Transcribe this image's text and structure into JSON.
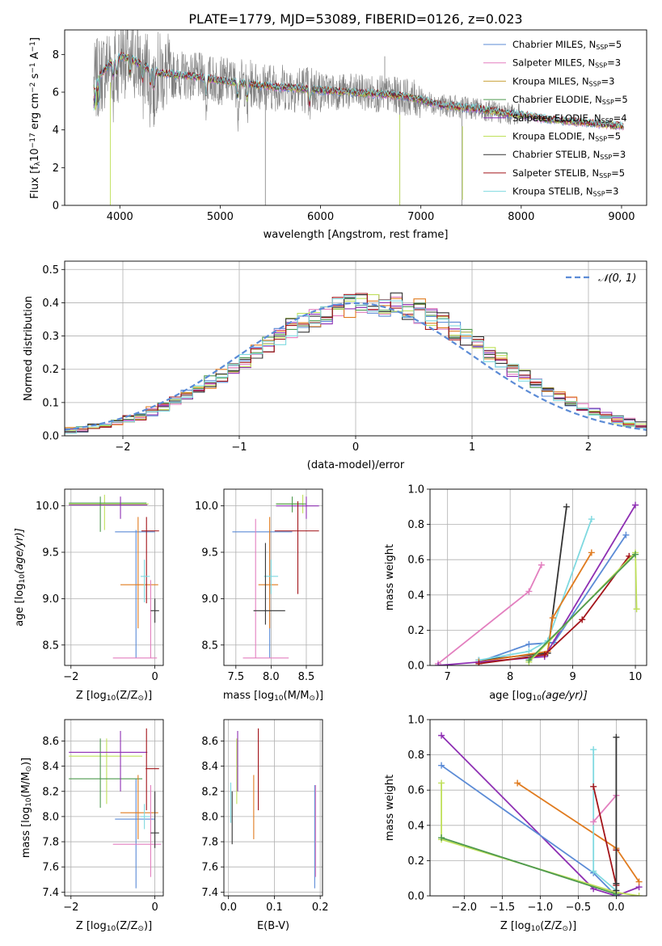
{
  "figure_title": "PLATE=1779, MJD=53089, FIBERID=0126, z=0.023",
  "colors": {
    "chabrier_miles": "#5b8bd6",
    "salpeter_miles": "#e37fbf",
    "kroupa_miles": "#c9a23a",
    "chabrier_elodie": "#4f9a4f",
    "salpeter_elodie": "#8e2fb3",
    "kroupa_elodie": "#bfe05a",
    "chabrier_stelib": "#333333",
    "salpeter_stelib": "#a3141a",
    "kroupa_stelib": "#7fd9e0",
    "orange": "#e07b1f",
    "data_gray": "#7f7f7f",
    "normal_curve": "#5b8bd6"
  },
  "chart_data": [
    {
      "type": "line",
      "id": "spectrum",
      "title": "",
      "xlabel": "wavelength [Angstrom, rest frame]",
      "ylabel_parts": [
        "Flux [f",
        "λ",
        "10",
        "−17",
        " erg cm",
        "−2",
        " s",
        "−1",
        " A",
        "−1",
        "]"
      ],
      "xlim": [
        3450,
        9250
      ],
      "ylim": [
        0,
        9.3
      ],
      "xticks": [
        4000,
        5000,
        6000,
        7000,
        8000,
        9000
      ],
      "yticks": [
        0,
        2,
        4,
        6,
        8
      ],
      "legend": [
        "Chabrier MILES, N_SSP=5",
        "Salpeter MILES, N_SSP=3",
        "Kroupa MILES, N_SSP=3",
        "Chabrier ELODIE, N_SSP=5",
        "Salpeter ELODIE, N_SSP=4",
        "Kroupa ELODIE, N_SSP=5",
        "Chabrier STELIB, N_SSP=3",
        "Salpeter STELIB, N_SSP=5",
        "Kroupa STELIB, N_SSP=3"
      ],
      "legend_labels": [
        {
          "name": "Chabrier MILES, N",
          "sub": "SSP",
          "num": "=5"
        },
        {
          "name": "Salpeter MILES, N",
          "sub": "SSP",
          "num": "=3"
        },
        {
          "name": "Kroupa MILES, N",
          "sub": "SSP",
          "num": "=3"
        },
        {
          "name": "Chabrier ELODIE, N",
          "sub": "SSP",
          "num": "=5"
        },
        {
          "name": "Salpeter ELODIE, N",
          "sub": "SSP",
          "num": "=4"
        },
        {
          "name": "Kroupa ELODIE, N",
          "sub": "SSP",
          "num": "=5"
        },
        {
          "name": "Chabrier STELIB, N",
          "sub": "SSP",
          "num": "=3"
        },
        {
          "name": "Salpeter STELIB, N",
          "sub": "SSP",
          "num": "=5"
        },
        {
          "name": "Kroupa STELIB, N",
          "sub": "SSP",
          "num": "=3"
        }
      ],
      "legend_placement": "upper right",
      "grid": false,
      "continuum": {
        "x": [
          3740,
          3800,
          3900,
          4000,
          4100,
          4200,
          4400,
          4600,
          4800,
          5000,
          5200,
          5500,
          5800,
          6000,
          6300,
          6600,
          6800,
          7000,
          7200,
          7400,
          7600,
          7800,
          8000,
          8200,
          8400,
          8600,
          8800,
          9000,
          9020
        ],
        "y": [
          6.4,
          6.9,
          7.5,
          7.9,
          7.8,
          7.5,
          7.0,
          6.9,
          6.8,
          6.6,
          6.5,
          6.3,
          6.2,
          6.1,
          6.0,
          5.9,
          5.8,
          5.6,
          5.3,
          5.2,
          5.1,
          4.9,
          4.8,
          4.6,
          4.5,
          4.4,
          4.3,
          4.2,
          4.2
        ]
      },
      "absorption_lines": [
        3934,
        3969,
        4102,
        4226,
        4304,
        4340,
        4861,
        5175,
        5270,
        5890
      ],
      "data_spikes": [
        {
          "x": 5450,
          "y": 0.0
        },
        {
          "x": 6790,
          "y": 0.0
        },
        {
          "x": 7410,
          "y": 0.0
        },
        {
          "x": 6640,
          "y": 7.9
        }
      ],
      "model_glitches": [
        {
          "x": 3905,
          "y": 0.0
        },
        {
          "x": 6790,
          "y": 0.0
        },
        {
          "x": 7415,
          "y": 0.3
        }
      ]
    },
    {
      "type": "histogram",
      "id": "residuals",
      "xlabel": "(data-model)/error",
      "ylabel": "Normed distribution",
      "xlim": [
        -2.5,
        2.5
      ],
      "ylim": [
        0,
        0.525
      ],
      "xticks": [
        -2,
        -1,
        0,
        1,
        2
      ],
      "yticks": [
        0,
        0.1,
        0.2,
        0.3,
        0.4,
        0.5
      ],
      "bin_width": 0.1,
      "grid": true,
      "legend": [
        "N(0,1)"
      ],
      "legend_placement": "upper right",
      "normal": {
        "mu": 0,
        "sigma": 1
      }
    },
    {
      "type": "errorbar",
      "id": "age_vs_Z",
      "xlabel_prefix": "Z [log",
      "xlabel_sub": "10",
      "xlabel_suffix": "(Z/Z",
      "xlabel_sun": "⊙",
      "xlabel_end": ")]",
      "ylabel": "age  [log10(age/yr)]",
      "ylabel_prefix": "age  [log",
      "ylabel_sub": "10",
      "ylabel_suffix": "(age/yr)]",
      "xlim": [
        -2.15,
        0.2
      ],
      "ylim": [
        8.28,
        10.18
      ],
      "xticks": [
        -2,
        0
      ],
      "yticks": [
        8.5,
        9.0,
        9.5,
        10.0
      ],
      "grid": true,
      "points": [
        {
          "c": "chabrier_miles",
          "x": -0.45,
          "y": 9.72,
          "xe": [
            -0.95,
            0.0
          ],
          "ye": [
            8.36,
            9.74
          ]
        },
        {
          "c": "kroupa_elodie",
          "x": -1.2,
          "y": 10.02,
          "xe": [
            -2.05,
            -0.15
          ],
          "ye": [
            9.74,
            10.12
          ]
        },
        {
          "c": "chabrier_elodie",
          "x": -1.3,
          "y": 10.03,
          "xe": [
            -2.05,
            -0.2
          ],
          "ye": [
            9.72,
            10.1
          ]
        },
        {
          "c": "salpeter_elodie",
          "x": -0.82,
          "y": 10.01,
          "xe": [
            -2.05,
            -0.18
          ],
          "ye": [
            9.86,
            10.1
          ]
        },
        {
          "c": "orange",
          "x": -0.4,
          "y": 9.15,
          "xe": [
            -0.82,
            0.08
          ],
          "ye": [
            8.68,
            9.88
          ]
        },
        {
          "c": "salpeter_stelib",
          "x": -0.2,
          "y": 9.73,
          "xe": [
            -0.32,
            0.1
          ],
          "ye": [
            8.95,
            9.88
          ]
        },
        {
          "c": "salpeter_miles",
          "x": -0.1,
          "y": 8.36,
          "xe": [
            -1.0,
            0.05
          ],
          "ye": [
            8.36,
            9.2
          ]
        },
        {
          "c": "kroupa_stelib",
          "x": -0.25,
          "y": 9.24,
          "xe": [
            -0.34,
            -0.12
          ],
          "ye": [
            8.96,
            9.42
          ]
        },
        {
          "c": "chabrier_stelib",
          "x": 0.0,
          "y": 8.87,
          "xe": [
            -0.1,
            0.1
          ],
          "ye": [
            8.74,
            9.0
          ]
        }
      ]
    },
    {
      "type": "errorbar",
      "id": "age_vs_mass",
      "xlabel_prefix": "mass [log",
      "xlabel_sub": "10",
      "xlabel_suffix": "(M/M",
      "xlabel_sun": "⊙",
      "xlabel_end": ")]",
      "xlim": [
        7.33,
        8.73
      ],
      "ylim": [
        8.28,
        10.18
      ],
      "xticks": [
        7.5,
        8.0,
        8.5
      ],
      "yticks": [
        8.5,
        9.0,
        9.5,
        10.0
      ],
      "grid": true,
      "points": [
        {
          "c": "chabrier_miles",
          "x": 7.98,
          "y": 9.72,
          "xe": [
            7.45,
            8.3
          ],
          "ye": [
            8.36,
            9.74
          ]
        },
        {
          "c": "kroupa_elodie",
          "x": 8.45,
          "y": 10.02,
          "xe": [
            8.07,
            8.45
          ],
          "ye": [
            9.92,
            10.12
          ]
        },
        {
          "c": "chabrier_elodie",
          "x": 8.3,
          "y": 10.02,
          "xe": [
            8.07,
            8.5
          ],
          "ye": [
            9.93,
            10.1
          ]
        },
        {
          "c": "salpeter_elodie",
          "x": 8.5,
          "y": 10.0,
          "xe": [
            8.07,
            8.68
          ],
          "ye": [
            9.86,
            10.1
          ]
        },
        {
          "c": "orange",
          "x": 7.98,
          "y": 9.15,
          "xe": [
            7.82,
            8.1
          ],
          "ye": [
            8.68,
            9.88
          ]
        },
        {
          "c": "salpeter_stelib",
          "x": 8.38,
          "y": 9.73,
          "xe": [
            8.05,
            8.68
          ],
          "ye": [
            9.05,
            10.05
          ]
        },
        {
          "c": "salpeter_miles",
          "x": 7.78,
          "y": 8.36,
          "xe": [
            7.6,
            8.25
          ],
          "ye": [
            8.36,
            9.86
          ]
        },
        {
          "c": "kroupa_stelib",
          "x": 8.0,
          "y": 9.24,
          "xe": [
            7.9,
            8.1
          ],
          "ye": [
            9.05,
            9.42
          ]
        },
        {
          "c": "chabrier_stelib",
          "x": 7.92,
          "y": 8.87,
          "xe": [
            7.75,
            8.2
          ],
          "ye": [
            8.72,
            9.6
          ]
        }
      ]
    },
    {
      "type": "line",
      "id": "massweight_vs_age",
      "xlabel_prefix": "age  [log",
      "xlabel_sub": "10",
      "xlabel_suffix": "(age/yr)]",
      "ylabel": "mass weight",
      "xlim": [
        6.72,
        10.18
      ],
      "ylim": [
        0,
        1.0
      ],
      "xticks": [
        7,
        8,
        9,
        10
      ],
      "yticks": [
        0.0,
        0.2,
        0.4,
        0.6,
        0.8,
        1.0
      ],
      "grid": true,
      "series": [
        {
          "c": "salpeter_miles",
          "x": [
            6.85,
            8.3,
            8.5
          ],
          "y": [
            0.01,
            0.42,
            0.57
          ]
        },
        {
          "c": "chabrier_miles",
          "x": [
            7.5,
            8.3,
            8.7,
            9.85
          ],
          "y": [
            0.02,
            0.12,
            0.13,
            0.74
          ]
        },
        {
          "c": "chabrier_stelib",
          "x": [
            7.5,
            8.6,
            8.9
          ],
          "y": [
            0.03,
            0.07,
            0.9
          ]
        },
        {
          "c": "kroupa_stelib",
          "x": [
            7.5,
            8.3,
            8.6,
            9.3
          ],
          "y": [
            0.03,
            0.08,
            0.14,
            0.83
          ]
        },
        {
          "c": "orange",
          "x": [
            7.5,
            8.6,
            8.68,
            9.3
          ],
          "y": [
            0.02,
            0.08,
            0.27,
            0.64
          ]
        },
        {
          "c": "salpeter_elodie",
          "x": [
            6.85,
            8.55,
            10.0
          ],
          "y": [
            0.0,
            0.05,
            0.91
          ]
        },
        {
          "c": "salpeter_stelib",
          "x": [
            7.5,
            8.55,
            9.15,
            9.9
          ],
          "y": [
            0.01,
            0.06,
            0.26,
            0.62
          ]
        },
        {
          "c": "kroupa_elodie",
          "x": [
            8.3,
            10.0,
            10.02
          ],
          "y": [
            0.02,
            0.64,
            0.32
          ]
        },
        {
          "c": "chabrier_elodie",
          "x": [
            8.3,
            10.0
          ],
          "y": [
            0.03,
            0.63
          ]
        }
      ]
    },
    {
      "type": "errorbar",
      "id": "mass_vs_Z",
      "xlabel_prefix": "Z [log",
      "xlabel_sub": "10",
      "xlabel_suffix": "(Z/Z",
      "xlabel_sun": "⊙",
      "xlabel_end": ")]",
      "ylabel_prefix": "mass [log",
      "ylabel_sub": "10",
      "ylabel_suffix": "(M/M",
      "ylabel_sun": "⊙",
      "ylabel_end": ")]",
      "xlim": [
        -2.15,
        0.2
      ],
      "ylim": [
        7.37,
        8.77
      ],
      "xticks": [
        -2,
        0
      ],
      "yticks": [
        7.4,
        7.6,
        7.8,
        8.0,
        8.2,
        8.4,
        8.6
      ],
      "grid": true,
      "points": [
        {
          "c": "chabrier_miles",
          "x": -0.45,
          "y": 7.98,
          "xe": [
            -0.95,
            0.0
          ],
          "ye": [
            7.43,
            8.3
          ]
        },
        {
          "c": "kroupa_elodie",
          "x": -1.15,
          "y": 8.48,
          "xe": [
            -2.05,
            -0.3
          ],
          "ye": [
            8.1,
            8.62
          ]
        },
        {
          "c": "chabrier_elodie",
          "x": -1.3,
          "y": 8.3,
          "xe": [
            -2.05,
            -0.3
          ],
          "ye": [
            8.07,
            8.62
          ]
        },
        {
          "c": "salpeter_elodie",
          "x": -0.82,
          "y": 8.51,
          "xe": [
            -2.05,
            -0.18
          ],
          "ye": [
            8.2,
            8.68
          ]
        },
        {
          "c": "orange",
          "x": -0.4,
          "y": 8.03,
          "xe": [
            -0.82,
            0.08
          ],
          "ye": [
            7.82,
            8.33
          ]
        },
        {
          "c": "salpeter_stelib",
          "x": -0.2,
          "y": 8.38,
          "xe": [
            -0.22,
            0.1
          ],
          "ye": [
            8.05,
            8.7
          ]
        },
        {
          "c": "salpeter_miles",
          "x": -0.1,
          "y": 7.78,
          "xe": [
            -1.0,
            0.15
          ],
          "ye": [
            7.52,
            8.25
          ]
        },
        {
          "c": "kroupa_stelib",
          "x": -0.25,
          "y": 8.0,
          "xe": [
            -0.34,
            -0.12
          ],
          "ye": [
            7.9,
            8.1
          ]
        },
        {
          "c": "chabrier_stelib",
          "x": 0.0,
          "y": 7.87,
          "xe": [
            -0.1,
            0.1
          ],
          "ye": [
            7.75,
            8.2
          ]
        }
      ]
    },
    {
      "type": "errorbar",
      "id": "mass_vs_ebv",
      "xlabel": "E(B-V)",
      "xlim": [
        -0.01,
        0.205
      ],
      "ylim": [
        7.37,
        8.77
      ],
      "xticks": [
        0.0,
        0.1,
        0.2
      ],
      "yticks": [
        7.4,
        7.6,
        7.8,
        8.0,
        8.2,
        8.4,
        8.6
      ],
      "grid": true,
      "points": [
        {
          "c": "chabrier_miles",
          "x": 0.188,
          "y": 7.98,
          "ye": [
            7.43,
            8.25
          ]
        },
        {
          "c": "kroupa_stelib",
          "x": 0.005,
          "y": 8.1,
          "ye": [
            7.95,
            8.27
          ]
        },
        {
          "c": "chabrier_stelib",
          "x": 0.008,
          "y": 7.98,
          "ye": [
            7.78,
            8.2
          ]
        },
        {
          "c": "kroupa_elodie",
          "x": 0.018,
          "y": 8.48,
          "ye": [
            8.1,
            8.62
          ]
        },
        {
          "c": "salpeter_elodie",
          "x": 0.02,
          "y": 8.5,
          "ye": [
            8.2,
            8.68
          ]
        },
        {
          "c": "orange",
          "x": 0.055,
          "y": 8.03,
          "ye": [
            7.82,
            8.33
          ]
        },
        {
          "c": "salpeter_stelib",
          "x": 0.065,
          "y": 8.38,
          "ye": [
            8.05,
            8.7
          ]
        },
        {
          "c": "salpeter_miles",
          "x": 0.19,
          "y": 7.78,
          "ye": [
            7.52,
            8.25
          ]
        }
      ]
    },
    {
      "type": "line",
      "id": "massweight_vs_Z",
      "xlabel_prefix": "Z [log",
      "xlabel_sub": "10",
      "xlabel_suffix": "(Z/Z",
      "xlabel_sun": "⊙",
      "xlabel_end": ")]",
      "ylabel": "mass weight",
      "xlim": [
        -2.45,
        0.4
      ],
      "ylim": [
        0,
        1.0
      ],
      "xticks": [
        -2.0,
        -1.5,
        -1.0,
        -0.5,
        0.0
      ],
      "yticks": [
        0.0,
        0.2,
        0.4,
        0.6,
        0.8,
        1.0
      ],
      "grid": true,
      "series": [
        {
          "c": "salpeter_elodie",
          "x": [
            -2.3,
            -0.3,
            0.0,
            0.3
          ],
          "y": [
            0.91,
            0.04,
            0.0,
            0.05
          ]
        },
        {
          "c": "chabrier_miles",
          "x": [
            -2.3,
            -0.3,
            0.0
          ],
          "y": [
            0.74,
            0.13,
            0.0
          ]
        },
        {
          "c": "kroupa_elodie",
          "x": [
            -2.3,
            -2.3,
            0.0,
            0.3
          ],
          "y": [
            0.64,
            0.32,
            0.02,
            0.0
          ]
        },
        {
          "c": "chabrier_elodie",
          "x": [
            -2.3,
            0.0
          ],
          "y": [
            0.33,
            0.01
          ]
        },
        {
          "c": "orange",
          "x": [
            -1.3,
            0.0,
            0.3
          ],
          "y": [
            0.64,
            0.27,
            0.08
          ]
        },
        {
          "c": "kroupa_stelib",
          "x": [
            -0.3,
            -0.3,
            0.0
          ],
          "y": [
            0.83,
            0.14,
            0.03
          ]
        },
        {
          "c": "salpeter_miles",
          "x": [
            -0.3,
            0.0
          ],
          "y": [
            0.42,
            0.57
          ]
        },
        {
          "c": "salpeter_stelib",
          "x": [
            -0.3,
            0.0,
            0.0
          ],
          "y": [
            0.62,
            0.06,
            0.26
          ]
        },
        {
          "c": "chabrier_stelib",
          "x": [
            0.0,
            0.0,
            0.0
          ],
          "y": [
            0.9,
            0.07,
            0.03
          ]
        }
      ]
    }
  ]
}
